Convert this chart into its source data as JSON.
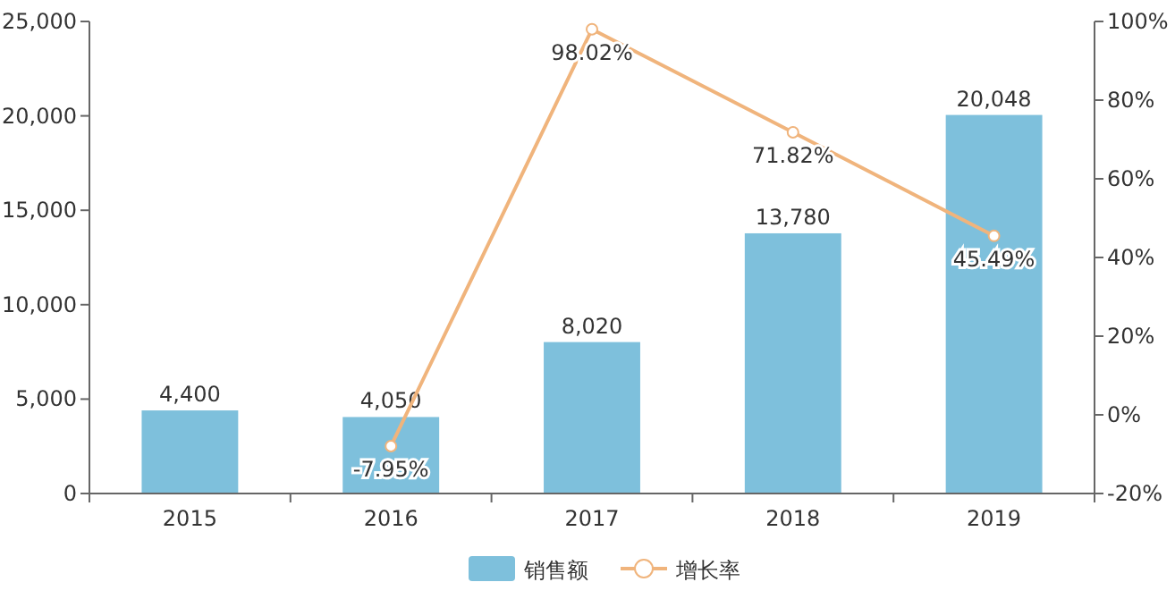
{
  "chart_data": {
    "type": "bar",
    "categories": [
      "2015",
      "2016",
      "2017",
      "2018",
      "2019"
    ],
    "series": [
      {
        "name": "销售额",
        "color": "#7ec0dc",
        "values": [
          4400,
          4050,
          8020,
          13780,
          20048
        ],
        "value_labels": [
          "4,400",
          "4,050",
          "8,020",
          "13,780",
          "20,048"
        ]
      },
      {
        "name": "增长率",
        "type": "line",
        "axis": "y2",
        "color": "#f0b47c",
        "marker": "circle",
        "values": [
          null,
          -7.95,
          98.02,
          71.82,
          45.49
        ],
        "value_labels": [
          null,
          "-7.95%",
          "98.02%",
          "71.82%",
          "45.49%"
        ]
      }
    ],
    "ylim": [
      0,
      25000
    ],
    "yticks": [
      {
        "value": 0,
        "label": "0"
      },
      {
        "value": 5000,
        "label": "5,000"
      },
      {
        "value": 10000,
        "label": "10,000"
      },
      {
        "value": 15000,
        "label": "15,000"
      },
      {
        "value": 20000,
        "label": "20,000"
      },
      {
        "value": 25000,
        "label": "25,000"
      }
    ],
    "y2lim": [
      -20,
      100
    ],
    "y2ticks": [
      {
        "value": -20,
        "label": "-20%"
      },
      {
        "value": 0,
        "label": "0%"
      },
      {
        "value": 20,
        "label": "20%"
      },
      {
        "value": 40,
        "label": "40%"
      },
      {
        "value": 60,
        "label": "60%"
      },
      {
        "value": 80,
        "label": "80%"
      },
      {
        "value": 100,
        "label": "100%"
      }
    ],
    "legend": "bottom"
  }
}
